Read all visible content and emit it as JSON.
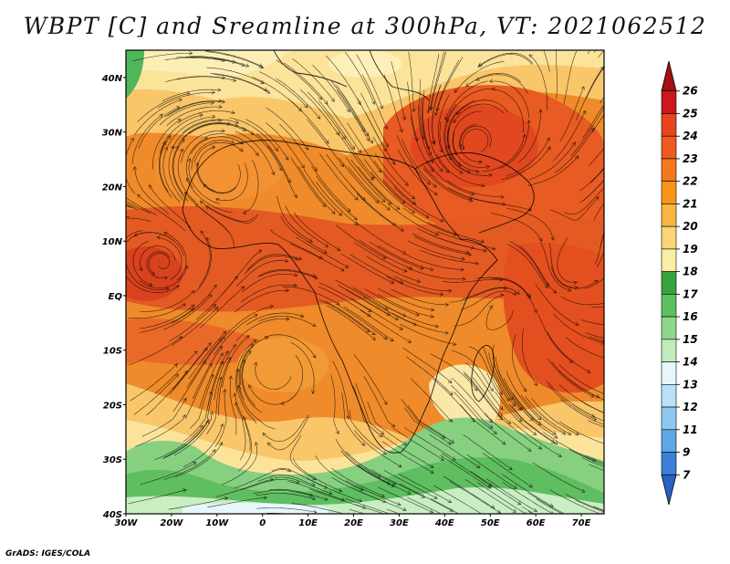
{
  "title": "WBPT [C] and Sreamline at 300hPa, VT: 2021062512",
  "footer": "GrADS: IGES/COLA",
  "map": {
    "lat_labels": [
      "40N",
      "30N",
      "20N",
      "10N",
      "EQ",
      "10S",
      "20S",
      "30S",
      "40S"
    ],
    "lon_labels": [
      "30W",
      "20W",
      "10W",
      "0",
      "10E",
      "20E",
      "30E",
      "40E",
      "50E",
      "60E",
      "70E"
    ],
    "lat_range": [
      -40,
      45
    ],
    "lon_range": [
      -30,
      75
    ]
  },
  "colorbar": {
    "levels": [
      "26",
      "25",
      "24",
      "23",
      "22",
      "21",
      "20",
      "19",
      "18",
      "17",
      "16",
      "15",
      "14",
      "13",
      "12",
      "11",
      "9",
      "7"
    ],
    "colors": [
      "#a50f15",
      "#cb181d",
      "#e8431c",
      "#f15a1e",
      "#f4781c",
      "#f7951b",
      "#f9b541",
      "#fad476",
      "#fbeda1",
      "#37a33e",
      "#5cc061",
      "#8ed88a",
      "#c2ecbb",
      "#e6f7fb",
      "#b9e1f7",
      "#8ec8f0",
      "#5ea6e6",
      "#3c7fd8",
      "#2a5fc6"
    ]
  }
}
